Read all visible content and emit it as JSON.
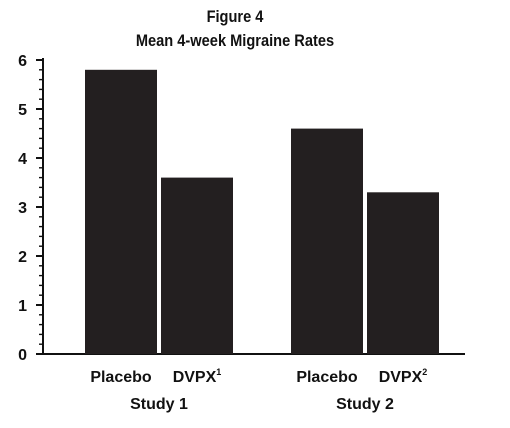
{
  "chart_data": {
    "type": "bar",
    "title": "Figure 4",
    "subtitle": "Mean 4-week Migraine Rates",
    "groups": [
      {
        "label": "Study 1",
        "bars": [
          {
            "label": "Placebo",
            "superscript": "",
            "value": 5.8
          },
          {
            "label": "DVPX",
            "superscript": "1",
            "value": 3.6
          }
        ]
      },
      {
        "label": "Study 2",
        "bars": [
          {
            "label": "Placebo",
            "superscript": "",
            "value": 4.6
          },
          {
            "label": "DVPX",
            "superscript": "2",
            "value": 3.3
          }
        ]
      }
    ],
    "ylim": [
      0,
      6
    ],
    "yticks": [
      "0",
      "1",
      "2",
      "3",
      "4",
      "5",
      "6"
    ],
    "xlabel": "",
    "ylabel": "",
    "bar_color": "#231f20",
    "grid": false
  }
}
